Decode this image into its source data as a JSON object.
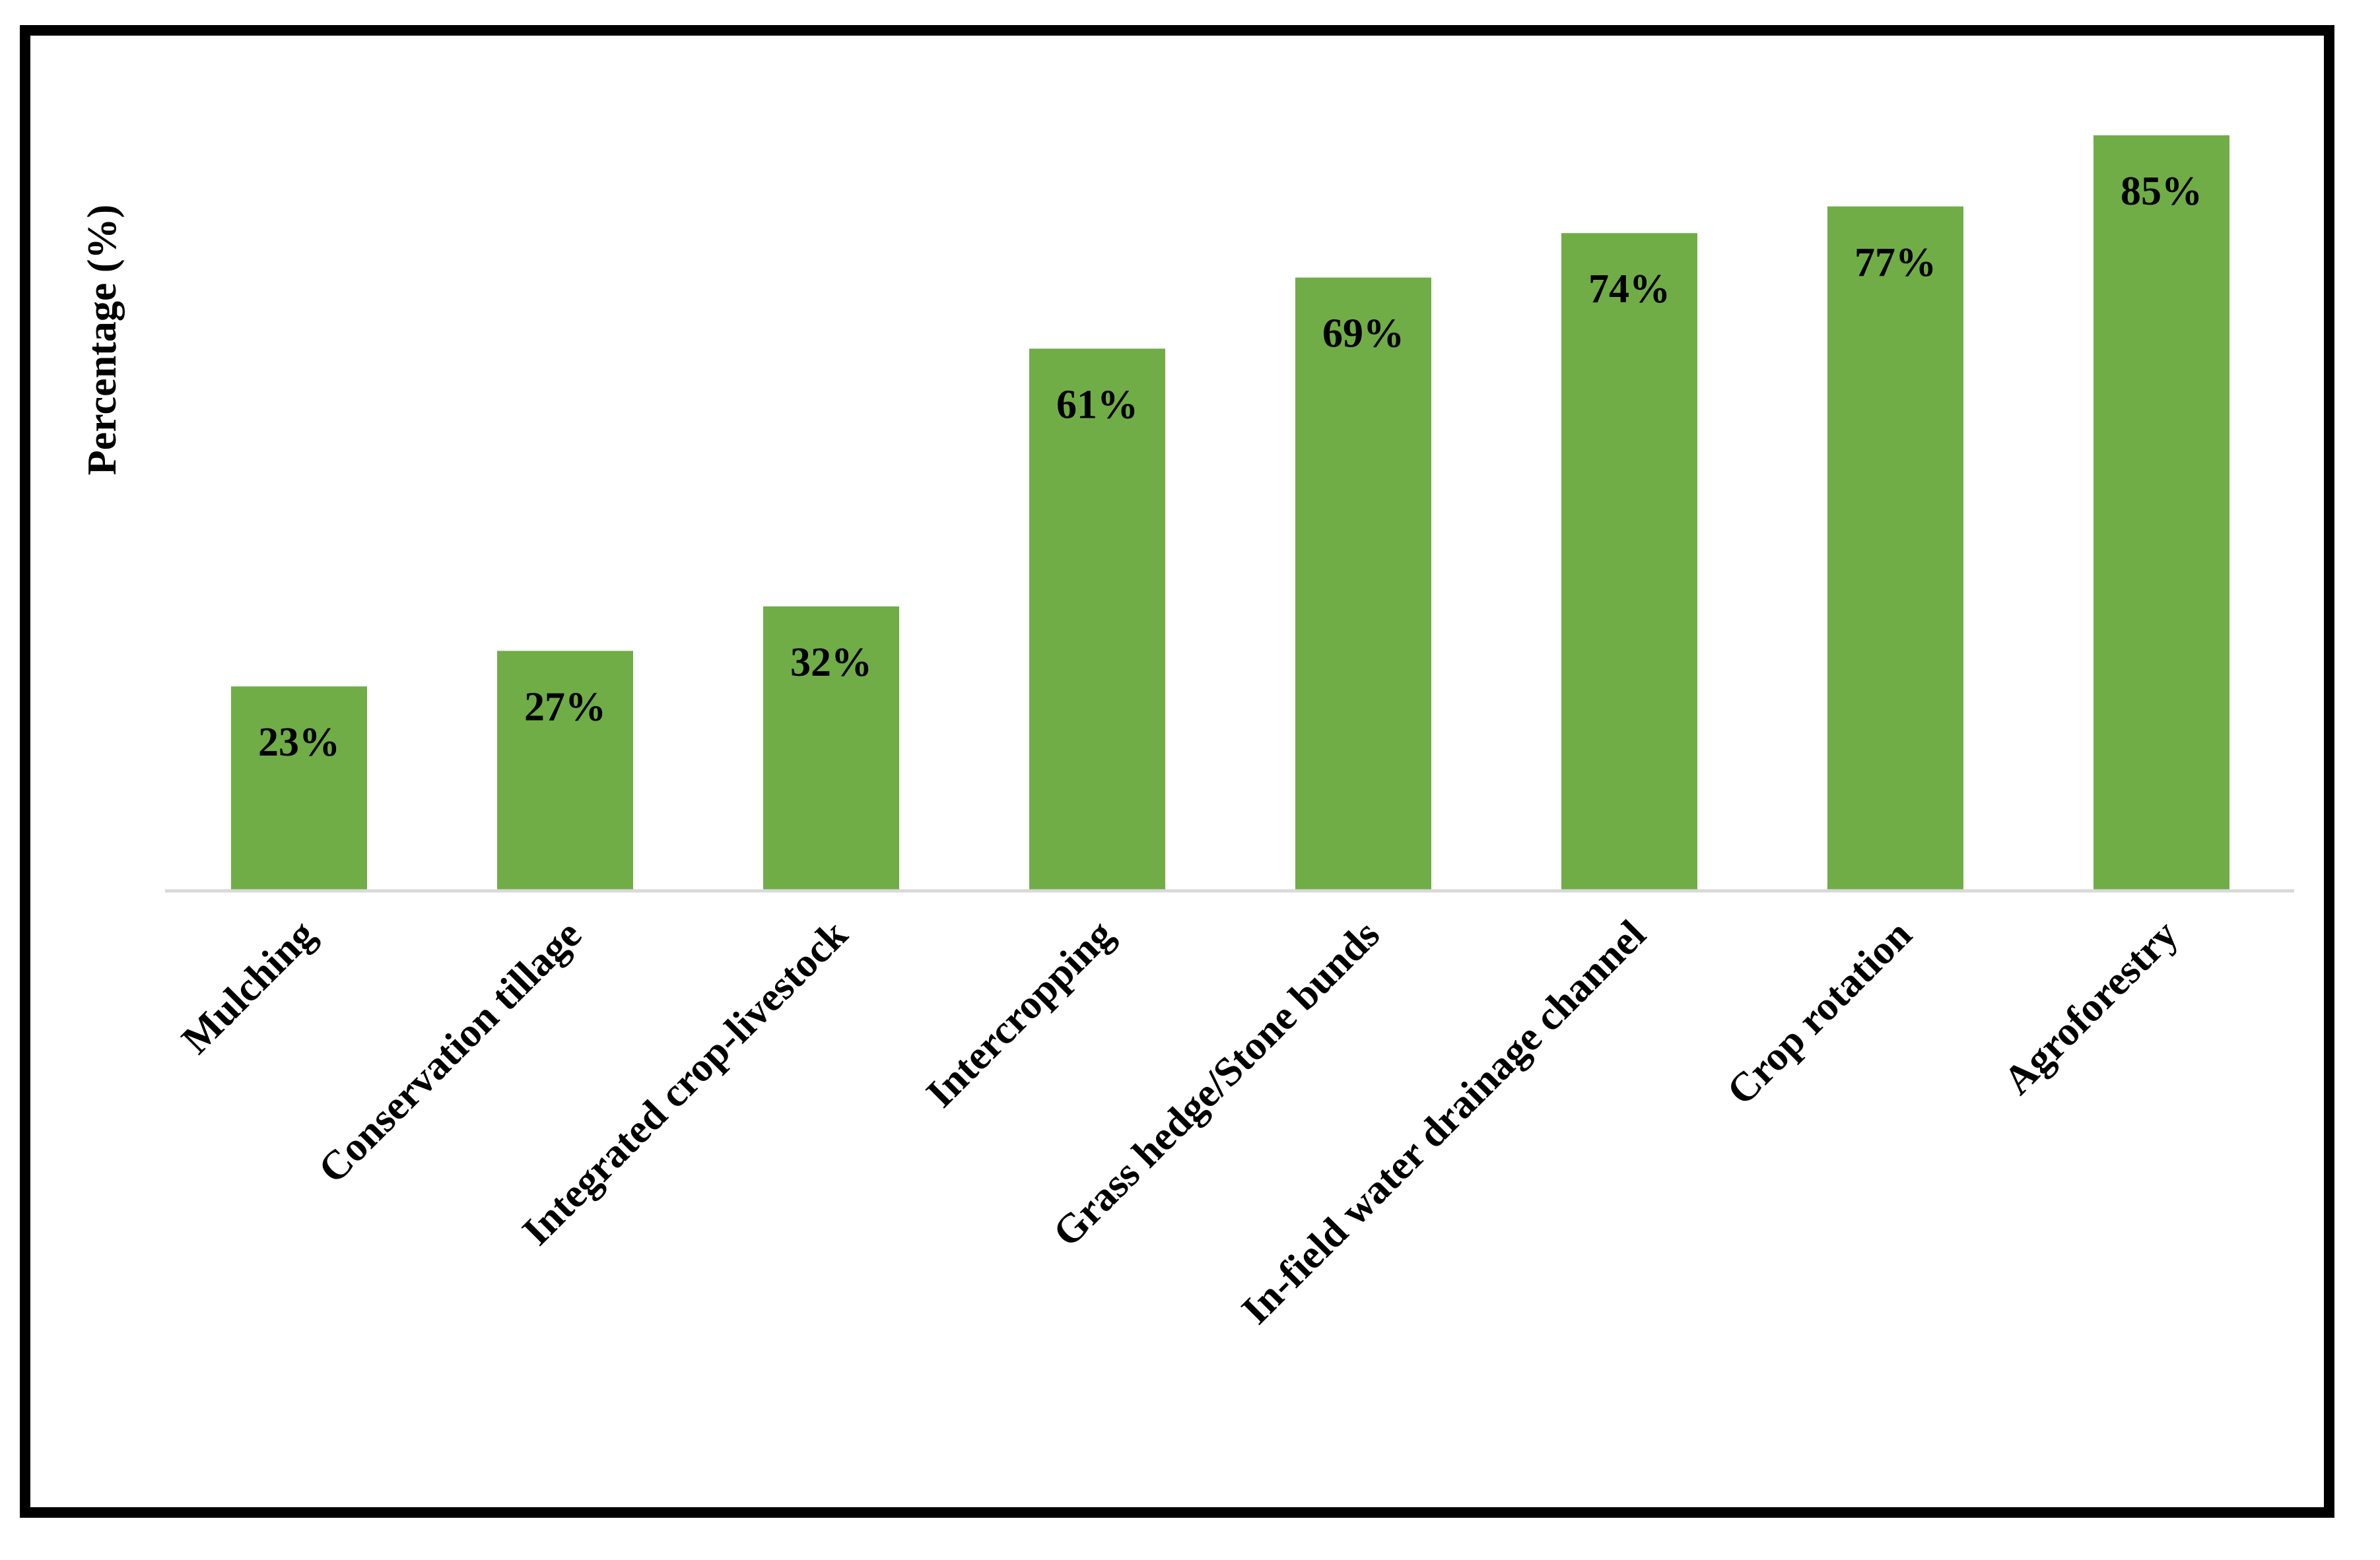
{
  "chart_data": {
    "type": "bar",
    "title": "",
    "xlabel": "",
    "ylabel": "Percentage (%)",
    "ylim": [
      0,
      100
    ],
    "grid": false,
    "legend": "none",
    "bar_color": "#70AD47",
    "axis_color": "#D9D9D9",
    "categories": [
      "Mulching",
      "Conservation tillage",
      "Integrated crop-livestock",
      "Intercropping",
      "Grass hedge/Stone bunds",
      "In-field water drainage channel",
      "Crop rotation",
      "Agroforestry"
    ],
    "values": [
      23,
      27,
      32,
      61,
      69,
      74,
      77,
      85
    ],
    "data_labels": [
      "23%",
      "27%",
      "32%",
      "61%",
      "69%",
      "74%",
      "77%",
      "85%"
    ]
  }
}
